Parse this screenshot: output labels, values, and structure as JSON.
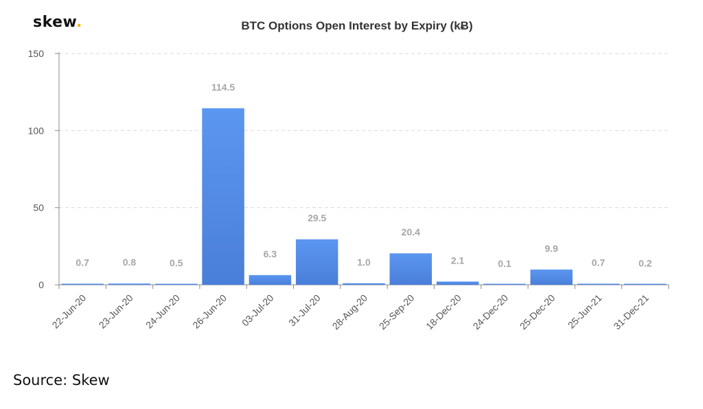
{
  "logo": {
    "text": "skew",
    "dot": ".",
    "dot_color": "#f2b705"
  },
  "source": "Source: Skew",
  "chart_data": {
    "type": "bar",
    "title": "BTC Options Open Interest by Expiry (kɃ)",
    "xlabel": "",
    "ylabel": "",
    "ylim": [
      0,
      150
    ],
    "yticks": [
      0,
      50,
      100,
      150
    ],
    "grid": true,
    "bar_color_top": "#5b96f0",
    "bar_color_bottom": "#4a7fd9",
    "categories": [
      "22-Jun-20",
      "23-Jun-20",
      "24-Jun-20",
      "26-Jun-20",
      "03-Jul-20",
      "31-Jul-20",
      "28-Aug-20",
      "25-Sep-20",
      "18-Dec-20",
      "24-Dec-20",
      "25-Dec-20",
      "25-Jun-21",
      "31-Dec-21"
    ],
    "values": [
      0.7,
      0.8,
      0.5,
      114.5,
      6.3,
      29.5,
      1.0,
      20.4,
      2.1,
      0.1,
      9.9,
      0.7,
      0.2
    ],
    "data_labels": [
      "0.7",
      "0.8",
      "0.5",
      "114.5",
      "6.3",
      "29.5",
      "1.0",
      "20.4",
      "2.1",
      "0.1",
      "9.9",
      "0.7",
      "0.2"
    ]
  }
}
